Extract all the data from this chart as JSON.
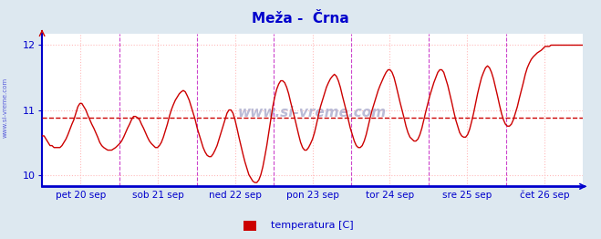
{
  "title": "Meža -  Črna",
  "title_color": "#0000cc",
  "title_fontsize": 11,
  "background_color": "#dde8f0",
  "plot_bg_color": "#ffffff",
  "outer_bg_color": "#dde8f0",
  "axis_color": "#0000cc",
  "line_color": "#cc0000",
  "avg_line_value": 10.88,
  "avg_line_color": "#cc0000",
  "ylim": [
    9.82,
    12.18
  ],
  "yticks": [
    10,
    11,
    12
  ],
  "grid_h_color": "#ffbbbb",
  "grid_v_color": "#ffbbbb",
  "watermark_text": "www.si-vreme.com",
  "watermark_color": "#aaaacc",
  "legend_label": "temperatura [C]",
  "legend_color": "#cc0000",
  "vline_color": "#cc44cc",
  "left_label": "www.si-vreme.com",
  "x_tick_labels": [
    "pet 20 sep",
    "sob 21 sep",
    "ned 22 sep",
    "pon 23 sep",
    "tor 24 sep",
    "sre 25 sep",
    "čet 26 sep"
  ],
  "n_days": 7,
  "temp_data": [
    10.6,
    10.6,
    10.55,
    10.5,
    10.45,
    10.45,
    10.42,
    10.42,
    10.42,
    10.42,
    10.45,
    10.5,
    10.55,
    10.62,
    10.7,
    10.78,
    10.85,
    10.95,
    11.05,
    11.1,
    11.1,
    11.05,
    11.0,
    10.92,
    10.85,
    10.78,
    10.72,
    10.65,
    10.58,
    10.5,
    10.45,
    10.42,
    10.4,
    10.38,
    10.38,
    10.38,
    10.4,
    10.42,
    10.45,
    10.48,
    10.52,
    10.58,
    10.65,
    10.72,
    10.78,
    10.85,
    10.9,
    10.9,
    10.88,
    10.85,
    10.78,
    10.72,
    10.65,
    10.58,
    10.52,
    10.48,
    10.45,
    10.42,
    10.42,
    10.45,
    10.5,
    10.58,
    10.68,
    10.78,
    10.9,
    11.0,
    11.08,
    11.15,
    11.2,
    11.25,
    11.28,
    11.3,
    11.28,
    11.22,
    11.15,
    11.05,
    10.95,
    10.85,
    10.72,
    10.62,
    10.52,
    10.42,
    10.35,
    10.3,
    10.28,
    10.28,
    10.32,
    10.38,
    10.45,
    10.55,
    10.65,
    10.75,
    10.85,
    10.95,
    11.0,
    11.0,
    10.95,
    10.85,
    10.72,
    10.58,
    10.45,
    10.32,
    10.2,
    10.1,
    10.0,
    9.95,
    9.9,
    9.88,
    9.88,
    9.92,
    10.0,
    10.12,
    10.28,
    10.45,
    10.65,
    10.85,
    11.05,
    11.2,
    11.32,
    11.4,
    11.45,
    11.45,
    11.42,
    11.35,
    11.25,
    11.12,
    11.0,
    10.88,
    10.75,
    10.62,
    10.5,
    10.42,
    10.38,
    10.38,
    10.42,
    10.48,
    10.55,
    10.65,
    10.78,
    10.92,
    11.05,
    11.15,
    11.25,
    11.35,
    11.42,
    11.48,
    11.52,
    11.55,
    11.52,
    11.45,
    11.35,
    11.22,
    11.1,
    10.98,
    10.85,
    10.72,
    10.62,
    10.52,
    10.45,
    10.42,
    10.42,
    10.45,
    10.52,
    10.62,
    10.75,
    10.88,
    11.0,
    11.1,
    11.2,
    11.3,
    11.38,
    11.45,
    11.52,
    11.58,
    11.62,
    11.62,
    11.58,
    11.5,
    11.38,
    11.25,
    11.12,
    11.0,
    10.88,
    10.75,
    10.65,
    10.58,
    10.55,
    10.52,
    10.52,
    10.55,
    10.62,
    10.72,
    10.85,
    10.98,
    11.1,
    11.22,
    11.32,
    11.42,
    11.5,
    11.58,
    11.62,
    11.62,
    11.58,
    11.48,
    11.38,
    11.25,
    11.12,
    10.98,
    10.85,
    10.75,
    10.65,
    10.6,
    10.58,
    10.58,
    10.62,
    10.7,
    10.82,
    10.95,
    11.1,
    11.25,
    11.38,
    11.5,
    11.58,
    11.65,
    11.68,
    11.65,
    11.58,
    11.48,
    11.35,
    11.22,
    11.08,
    10.95,
    10.85,
    10.78,
    10.75,
    10.75,
    10.78,
    10.85,
    10.95,
    11.05,
    11.18,
    11.3,
    11.42,
    11.55,
    11.65,
    11.72,
    11.78,
    11.82,
    11.85,
    11.88,
    11.9,
    11.92,
    11.95,
    11.98,
    11.98,
    11.98,
    12.0,
    12.0,
    12.0,
    12.0,
    12.0,
    12.0,
    12.0,
    12.0,
    12.0,
    12.0,
    12.0,
    12.0,
    12.0,
    12.0,
    12.0,
    12.0,
    12.0
  ]
}
